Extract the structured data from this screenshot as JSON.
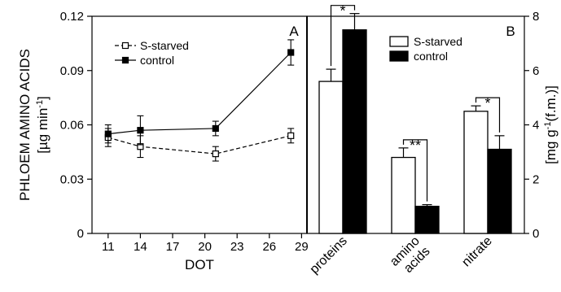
{
  "chart_data": [
    {
      "panel": "A",
      "type": "line",
      "ylabel_line1": "PHLOEM AMINO ACIDS",
      "ylabel_line2_pre": "[µg min",
      "ylabel_line2_sup": "-1",
      "ylabel_line2_post": "]",
      "xlabel": "DOT",
      "xlim": [
        9.5,
        29.5
      ],
      "ylim": [
        0,
        0.12
      ],
      "xticks": [
        "11",
        "14",
        "17",
        "20",
        "23",
        "26",
        "29"
      ],
      "yticks": [
        "0",
        "0.03",
        "0.06",
        "0.09",
        "0.12"
      ],
      "legend_position": "upper-left",
      "series": [
        {
          "name": "S-starved",
          "style": "dashed",
          "marker": "open-square",
          "color": "#000000",
          "x": [
            11,
            14,
            21,
            28
          ],
          "y": [
            0.053,
            0.048,
            0.044,
            0.054
          ],
          "err": [
            0.005,
            0.006,
            0.004,
            0.004
          ]
        },
        {
          "name": "control",
          "style": "solid",
          "marker": "filled-square",
          "color": "#000000",
          "x": [
            11,
            14,
            21,
            28
          ],
          "y": [
            0.055,
            0.057,
            0.058,
            0.1
          ],
          "err": [
            0.005,
            0.008,
            0.004,
            0.007
          ]
        }
      ]
    },
    {
      "panel": "B",
      "type": "bar",
      "ylabel_pre": "[mg g",
      "ylabel_sup": "-1",
      "ylabel_post": "(f.m.)]",
      "ylim": [
        0,
        8
      ],
      "yticks": [
        "0",
        "2",
        "4",
        "6",
        "8"
      ],
      "categories": [
        [
          "proteins"
        ],
        [
          "amino",
          "acids"
        ],
        [
          "nitrate"
        ]
      ],
      "legend_position": "upper-left",
      "series": [
        {
          "name": "S-starved",
          "fill": "#ffffff",
          "values": [
            5.6,
            2.8,
            4.5
          ],
          "err": [
            0.45,
            0.35,
            0.2
          ]
        },
        {
          "name": "control",
          "fill": "#000000",
          "values": [
            7.5,
            1.0,
            3.1
          ],
          "err": [
            0.6,
            0.06,
            0.5
          ]
        }
      ],
      "significance": [
        "*",
        "**",
        "*"
      ]
    }
  ]
}
